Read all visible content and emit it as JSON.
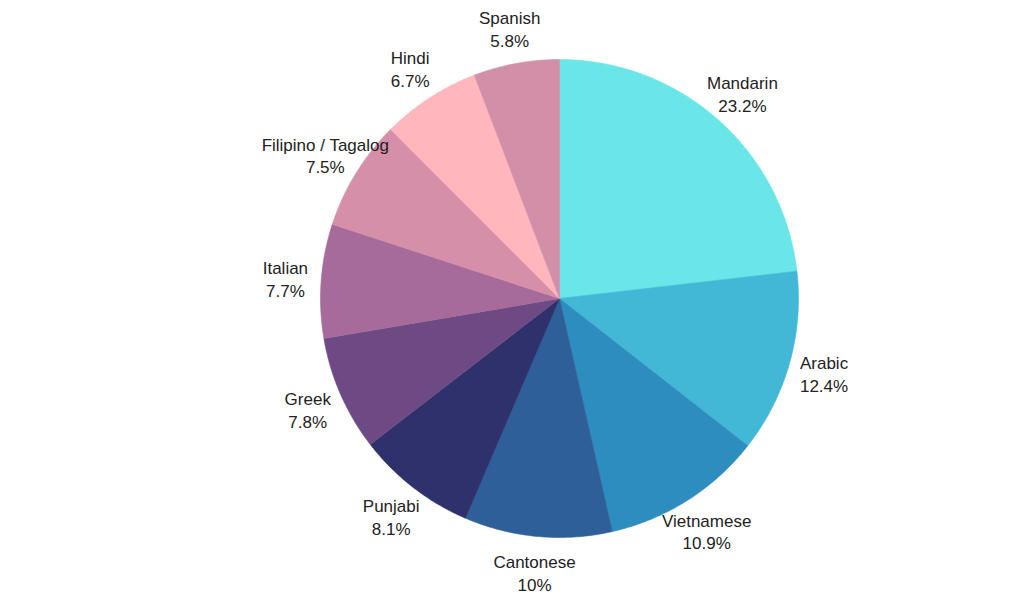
{
  "chart_data": {
    "type": "pie",
    "categories": [
      "Mandarin",
      "Arabic",
      "Vietnamese",
      "Cantonese",
      "Punjabi",
      "Greek",
      "Italian",
      "Filipino / Tagalog",
      "Hindi",
      "Spanish"
    ],
    "values": [
      23.2,
      12.4,
      10.9,
      10,
      8.1,
      7.8,
      7.7,
      7.5,
      6.7,
      5.8
    ],
    "value_labels": [
      "23.2%",
      "12.4%",
      "10.9%",
      "10%",
      "8.1%",
      "7.8%",
      "7.7%",
      "7.5%",
      "6.7%",
      "5.8%"
    ],
    "colors": [
      "#6ae5e8",
      "#42b8d6",
      "#2e8dbf",
      "#2e5f99",
      "#2e316b",
      "#6e4a85",
      "#a66b9a",
      "#d68fa8",
      "#ffb6bc",
      "#d18fa8"
    ],
    "data_labels": true
  }
}
